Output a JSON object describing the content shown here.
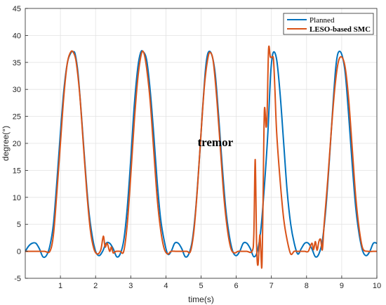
{
  "chart_data": {
    "type": "line",
    "title": "",
    "xlabel": "time(s)",
    "ylabel": "degree(°)",
    "xlim": [
      0,
      10
    ],
    "ylim": [
      -5,
      45
    ],
    "xticks": [
      1,
      2,
      3,
      4,
      5,
      6,
      7,
      8,
      9,
      10
    ],
    "yticks": [
      -5,
      0,
      5,
      10,
      15,
      20,
      25,
      30,
      35,
      40,
      45
    ],
    "grid": true,
    "legend_position": "top-right",
    "annotation": "tremor",
    "series": [
      {
        "name": "Planned",
        "color": "#0072BD",
        "x": [
          0,
          0.1,
          0.2,
          0.3,
          0.4,
          0.5,
          0.6,
          0.7,
          0.8,
          0.9,
          1.0,
          1.1,
          1.2,
          1.3,
          1.36,
          1.42,
          1.5,
          1.6,
          1.7,
          1.8,
          1.9,
          2.0,
          2.1,
          2.2,
          2.3,
          2.4,
          2.5,
          2.6,
          2.7,
          2.8,
          2.9,
          3.0,
          3.1,
          3.2,
          3.28,
          3.35,
          3.45,
          3.55,
          3.65,
          3.75,
          3.85,
          3.95,
          4.05,
          4.15,
          4.25,
          4.35,
          4.45,
          4.55,
          4.65,
          4.75,
          4.85,
          4.95,
          5.05,
          5.13,
          5.2,
          5.3,
          5.4,
          5.5,
          5.6,
          5.7,
          5.8,
          5.9,
          6.0,
          6.1,
          6.2,
          6.3,
          6.4,
          6.5,
          6.6,
          6.7,
          6.8,
          6.9,
          6.98,
          7.05,
          7.15,
          7.25,
          7.35,
          7.45,
          7.55,
          7.65,
          7.75,
          7.85,
          7.95,
          8.05,
          8.15,
          8.25,
          8.35,
          8.45,
          8.55,
          8.65,
          8.75,
          8.83,
          8.9,
          9.0,
          9.1,
          9.2,
          9.3,
          9.4,
          9.5,
          9.6,
          9.7,
          9.8,
          9.9,
          10.0
        ],
        "y": [
          0,
          1,
          1.5,
          1.5,
          0.5,
          -1,
          -0.8,
          1,
          5,
          13,
          22,
          30,
          35,
          36.8,
          37,
          36.5,
          33,
          25,
          16,
          8,
          3,
          0,
          -0.8,
          0,
          1.5,
          1.5,
          0.5,
          -1,
          -0.5,
          2,
          8,
          17,
          27,
          34,
          36.8,
          37,
          35.5,
          30,
          22,
          13,
          6,
          2,
          -0.5,
          0,
          1.5,
          1.5,
          0.5,
          -1,
          -0.5,
          2,
          8,
          17,
          27,
          34,
          36.8,
          36.5,
          33,
          25,
          16,
          8,
          3,
          0,
          -0.8,
          0,
          1.5,
          1.5,
          0.5,
          -1,
          0,
          4,
          12,
          22,
          33,
          36.8,
          35.5,
          29,
          20,
          11,
          5,
          1.5,
          -0.5,
          0.5,
          1.5,
          1.5,
          0.5,
          -1,
          -0.5,
          2,
          8,
          17,
          27,
          34,
          36.8,
          36.5,
          33,
          25,
          16,
          8,
          3,
          0,
          -0.8,
          0,
          1.5,
          1.5
        ]
      },
      {
        "name": "LESO-based SMC",
        "color": "#D95319",
        "x": [
          0,
          0.15,
          0.25,
          0.4,
          0.55,
          0.7,
          0.8,
          0.9,
          1.0,
          1.1,
          1.2,
          1.3,
          1.38,
          1.45,
          1.55,
          1.65,
          1.75,
          1.85,
          1.95,
          2.05,
          2.15,
          2.22,
          2.27,
          2.33,
          2.4,
          2.45,
          2.5,
          2.58,
          2.7,
          2.8,
          2.9,
          3.0,
          3.1,
          3.2,
          3.3,
          3.37,
          3.45,
          3.55,
          3.65,
          3.75,
          3.85,
          3.95,
          4.05,
          4.15,
          4.3,
          4.5,
          4.6,
          4.7,
          4.8,
          4.9,
          5.0,
          5.1,
          5.2,
          5.27,
          5.35,
          5.45,
          5.55,
          5.65,
          5.75,
          5.85,
          5.95,
          6.05,
          6.15,
          6.3,
          6.45,
          6.5,
          6.54,
          6.58,
          6.62,
          6.67,
          6.7,
          6.73,
          6.76,
          6.8,
          6.85,
          6.88,
          6.92,
          6.97,
          7.02,
          7.06,
          7.1,
          7.15,
          7.25,
          7.35,
          7.45,
          7.55,
          7.65,
          7.75,
          7.85,
          7.95,
          8.05,
          8.15,
          8.2,
          8.25,
          8.3,
          8.35,
          8.4,
          8.45,
          8.5,
          8.6,
          8.7,
          8.8,
          8.9,
          9.0,
          9.1,
          9.2,
          9.3,
          9.4,
          9.5,
          9.6,
          9.75,
          9.9,
          10.0
        ],
        "y": [
          0,
          0,
          0,
          0,
          0,
          0,
          3,
          11,
          20,
          29,
          35,
          37,
          36.7,
          35,
          29,
          20,
          11,
          4,
          0.5,
          -0.5,
          0.3,
          2.8,
          0.8,
          1.5,
          0,
          0.8,
          -0.3,
          0,
          0,
          0,
          5,
          14,
          24,
          32,
          36.5,
          36.8,
          34,
          28,
          19,
          10,
          4,
          0.5,
          -0.5,
          0,
          0,
          0,
          0,
          0,
          4,
          12,
          22,
          31,
          36,
          36.8,
          35,
          28,
          19,
          10,
          4,
          0.5,
          -0.3,
          0,
          0,
          0,
          0,
          3,
          17,
          1,
          -2.5,
          3,
          0,
          -2.8,
          8,
          26,
          23,
          26,
          37.5,
          36,
          36,
          35.5,
          30,
          22,
          13,
          6,
          2,
          -0.5,
          0,
          0,
          0,
          0,
          0,
          1.5,
          0.3,
          1.8,
          0.2,
          1.8,
          2.2,
          0.3,
          5,
          13,
          22,
          30,
          35,
          36,
          34,
          28,
          19,
          10,
          4,
          0.5,
          0,
          0,
          0
        ]
      }
    ]
  }
}
